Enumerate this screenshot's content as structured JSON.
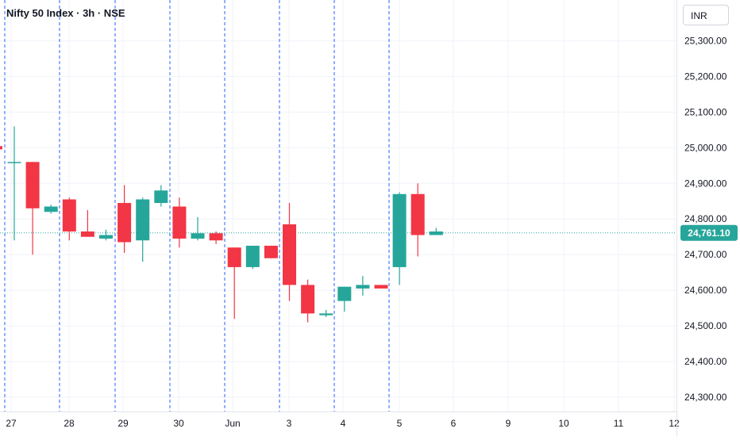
{
  "header": {
    "title": "Nifty 50 Index · 3h · NSE",
    "currency": "INR"
  },
  "colors": {
    "up": "#26a69a",
    "down": "#f23645",
    "grid": "#f0f3fa",
    "session_line": "#2962ff",
    "last_price_bg": "#26a69a"
  },
  "chart_data": {
    "type": "candlestick",
    "ylim": [
      24260,
      25370
    ],
    "y_ticks": [
      {
        "value": 24300,
        "label": "24,300.00"
      },
      {
        "value": 24400,
        "label": "24,400.00"
      },
      {
        "value": 24500,
        "label": "24,500.00"
      },
      {
        "value": 24600,
        "label": "24,600.00"
      },
      {
        "value": 24700,
        "label": "24,700.00"
      },
      {
        "value": 24800,
        "label": "24,800.00"
      },
      {
        "value": 24900,
        "label": "24,900.00"
      },
      {
        "value": 25000,
        "label": "25,000.00"
      },
      {
        "value": 25100,
        "label": "25,100.00"
      },
      {
        "value": 25200,
        "label": "25,200.00"
      },
      {
        "value": 25300,
        "label": "25,300.00"
      }
    ],
    "x_ticks": [
      "27",
      "28",
      "29",
      "30",
      "Jun",
      "3",
      "4",
      "5",
      "6",
      "9",
      "10",
      "11",
      "12"
    ],
    "last_price": {
      "value": 24761.1,
      "label": "24,761.10"
    },
    "candles": [
      {
        "o": 24960,
        "h": 25060,
        "l": 24740,
        "c": 24960
      },
      {
        "o": 24960,
        "h": 24960,
        "l": 24700,
        "c": 24830
      },
      {
        "o": 24820,
        "h": 24840,
        "l": 24815,
        "c": 24835
      },
      {
        "o": 24855,
        "h": 24860,
        "l": 24740,
        "c": 24765
      },
      {
        "o": 24765,
        "h": 24825,
        "l": 24750,
        "c": 24750
      },
      {
        "o": 24745,
        "h": 24770,
        "l": 24740,
        "c": 24755
      },
      {
        "o": 24845,
        "h": 24895,
        "l": 24705,
        "c": 24735
      },
      {
        "o": 24740,
        "h": 24860,
        "l": 24680,
        "c": 24855
      },
      {
        "o": 24845,
        "h": 24895,
        "l": 24835,
        "c": 24880
      },
      {
        "o": 24835,
        "h": 24860,
        "l": 24720,
        "c": 24745
      },
      {
        "o": 24745,
        "h": 24805,
        "l": 24740,
        "c": 24760
      },
      {
        "o": 24760,
        "h": 24765,
        "l": 24730,
        "c": 24740
      },
      {
        "o": 24720,
        "h": 24720,
        "l": 24520,
        "c": 24665
      },
      {
        "o": 24665,
        "h": 24725,
        "l": 24660,
        "c": 24725
      },
      {
        "o": 24725,
        "h": 24725,
        "l": 24690,
        "c": 24690
      },
      {
        "o": 24785,
        "h": 24845,
        "l": 24570,
        "c": 24615
      },
      {
        "o": 24615,
        "h": 24630,
        "l": 24510,
        "c": 24535
      },
      {
        "o": 24530,
        "h": 24545,
        "l": 24525,
        "c": 24535
      },
      {
        "o": 24570,
        "h": 24610,
        "l": 24540,
        "c": 24610
      },
      {
        "o": 24605,
        "h": 24640,
        "l": 24585,
        "c": 24615
      },
      {
        "o": 24615,
        "h": 24615,
        "l": 24605,
        "c": 24605
      },
      {
        "o": 24665,
        "h": 24875,
        "l": 24615,
        "c": 24870
      },
      {
        "o": 24870,
        "h": 24900,
        "l": 24695,
        "c": 24755
      },
      {
        "o": 24755,
        "h": 24775,
        "l": 24755,
        "c": 24765
      }
    ]
  }
}
